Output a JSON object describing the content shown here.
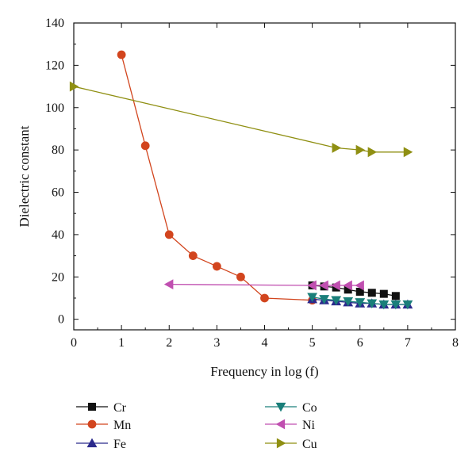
{
  "chart_data": {
    "type": "line",
    "title": "",
    "xlabel": "Frequency in log (f)",
    "ylabel": "Dielectric constant",
    "xlim": [
      0,
      8
    ],
    "ylim": [
      -5,
      140
    ],
    "xticks": [
      0,
      1,
      2,
      3,
      4,
      5,
      6,
      7,
      8
    ],
    "yticks": [
      0,
      20,
      40,
      60,
      80,
      100,
      120,
      140
    ],
    "grid": false,
    "legend_position": "bottom",
    "series": [
      {
        "name": "Cr",
        "color": "#111111",
        "marker": "square",
        "x": [
          5.0,
          5.25,
          5.5,
          5.75,
          6.0,
          6.25,
          6.5,
          6.75
        ],
        "y": [
          16,
          15.5,
          15,
          14,
          13,
          12.5,
          12,
          11
        ]
      },
      {
        "name": "Mn",
        "color": "#d2451e",
        "marker": "circle",
        "x": [
          1,
          1.5,
          2,
          2.5,
          3,
          3.5,
          4,
          5
        ],
        "y": [
          125,
          82,
          40,
          30,
          25,
          20,
          10,
          9
        ]
      },
      {
        "name": "Fe",
        "color": "#2b2a8c",
        "marker": "triangle-up",
        "x": [
          5.0,
          5.25,
          5.5,
          5.75,
          6.0,
          6.25,
          6.5,
          6.75,
          7.0
        ],
        "y": [
          9.5,
          9,
          8.5,
          8,
          7.5,
          7.5,
          7,
          7,
          7
        ]
      },
      {
        "name": "Co",
        "color": "#1a7f7a",
        "marker": "triangle-down",
        "x": [
          5.0,
          5.25,
          5.5,
          5.75,
          6.0,
          6.25,
          6.5,
          6.75,
          7.0
        ],
        "y": [
          10.5,
          9.5,
          9,
          8.5,
          8,
          7.5,
          7,
          7,
          7
        ]
      },
      {
        "name": "Ni",
        "color": "#c04fb0",
        "marker": "triangle-left",
        "x": [
          2,
          5,
          5.25,
          5.5,
          5.75,
          6.0
        ],
        "y": [
          16.5,
          16,
          16,
          16,
          16,
          16
        ]
      },
      {
        "name": "Cu",
        "color": "#8f8f12",
        "marker": "triangle-right",
        "x": [
          0,
          5.5,
          6.0,
          6.25,
          7.0
        ],
        "y": [
          110,
          81,
          80,
          79,
          79
        ]
      }
    ]
  }
}
